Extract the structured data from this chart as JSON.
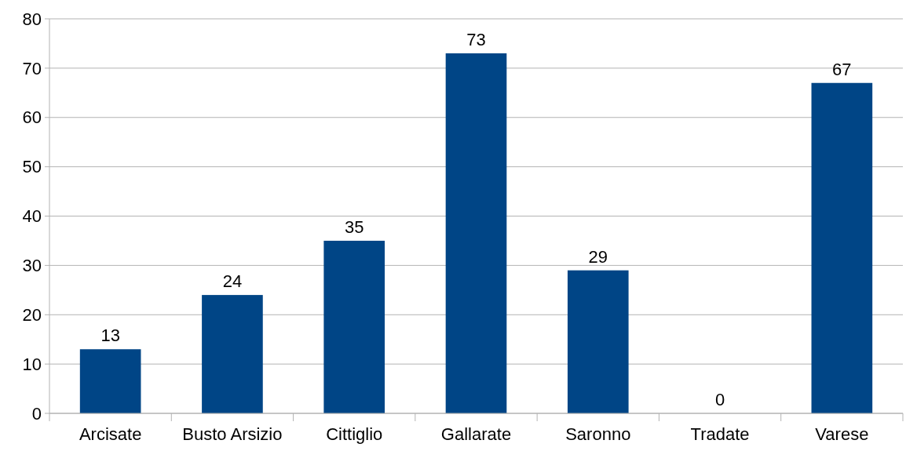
{
  "chart_data": {
    "type": "bar",
    "categories": [
      "Arcisate",
      "Busto Arsizio",
      "Cittiglio",
      "Gallarate",
      "Saronno",
      "Tradate",
      "Varese"
    ],
    "values": [
      13,
      24,
      35,
      73,
      29,
      0,
      67
    ],
    "color": "#004586",
    "ylim": [
      0,
      80
    ],
    "yticks": [
      0,
      10,
      20,
      30,
      40,
      50,
      60,
      70,
      80
    ],
    "grid": "y",
    "data_labels": true
  }
}
